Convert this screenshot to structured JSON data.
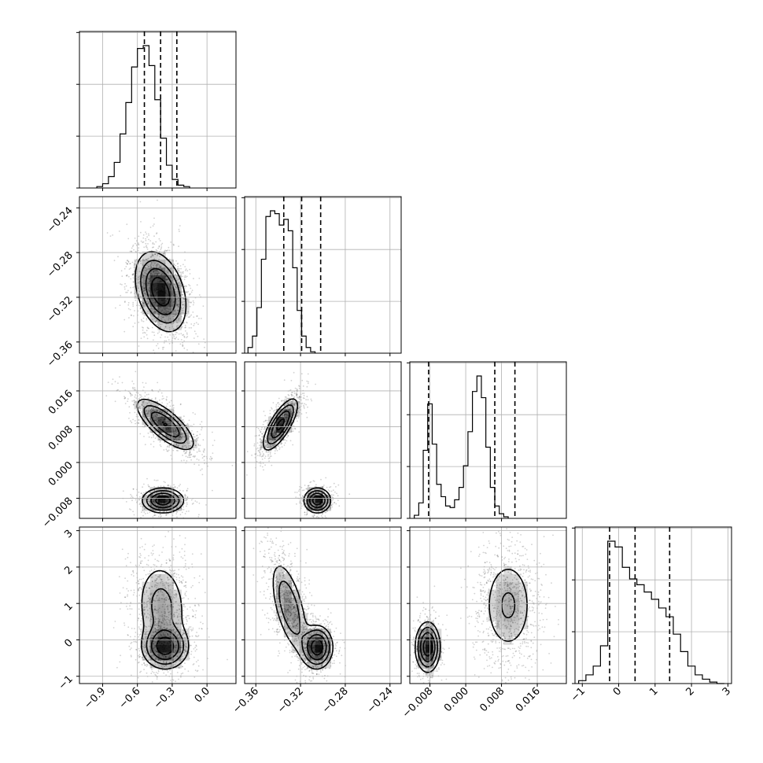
{
  "chart_data": {
    "type": "corner",
    "title": "",
    "parameters": [
      {
        "name": "",
        "range": [
          -1.1,
          0.25
        ],
        "ticks": [
          "-0.9",
          "-0.6",
          "-0.3",
          "0.0"
        ],
        "tick_values": [
          -0.9,
          -0.6,
          -0.3,
          0.0
        ],
        "quantiles": [
          -0.54,
          -0.4,
          -0.26
        ]
      },
      {
        "name": "",
        "range": [
          -0.37,
          -0.23
        ],
        "ticks": [
          "-0.36",
          "-0.32",
          "-0.28",
          "-0.24"
        ],
        "tick_values": [
          -0.36,
          -0.32,
          -0.28,
          -0.24
        ],
        "quantiles": [
          -0.335,
          -0.319,
          -0.302
        ]
      },
      {
        "name": "",
        "range": [
          -0.0125,
          0.0225
        ],
        "ticks": [
          "-0.008",
          "0.000",
          "0.008",
          "0.016"
        ],
        "tick_values": [
          -0.008,
          0.0,
          0.008,
          0.016
        ],
        "quantiles": [
          -0.0083,
          0.0065,
          0.011
        ]
      },
      {
        "name": "",
        "range": [
          -1.2,
          3.1
        ],
        "ticks": [
          "-1",
          "0",
          "1",
          "2",
          "3"
        ],
        "tick_values": [
          -1,
          0,
          1,
          2,
          3
        ],
        "quantiles": [
          -0.25,
          0.45,
          1.4
        ]
      }
    ],
    "y_tick_labels": {
      "p1": [
        "-0.24",
        "-0.28",
        "-0.32",
        "-0.36"
      ],
      "p2": [
        "0.016",
        "0.008",
        "0.000",
        "-0.008"
      ],
      "p3": [
        "3",
        "2",
        "1",
        "0",
        "-1"
      ]
    },
    "histograms": [
      {
        "param": 0,
        "edges_start": -0.95,
        "bin_width": 0.05,
        "counts": [
          1,
          3,
          8,
          18,
          38,
          60,
          85,
          98,
          100,
          86,
          62,
          35,
          16,
          6,
          2,
          1
        ]
      },
      {
        "param": 1,
        "edges_start": -0.367,
        "bin_width": 0.004,
        "counts": [
          4,
          12,
          32,
          66,
          96,
          100,
          98,
          90,
          94,
          86,
          60,
          30,
          12,
          4,
          1
        ]
      },
      {
        "param": 2,
        "edges_start": -0.0115,
        "bin_width": 0.001,
        "counts": [
          2,
          10,
          44,
          74,
          48,
          22,
          14,
          8,
          7,
          12,
          20,
          34,
          56,
          82,
          92,
          78,
          46,
          20,
          8,
          3,
          1
        ]
      },
      {
        "param": 3,
        "edges_start": -1.1,
        "bin_width": 0.2,
        "counts": [
          2,
          6,
          12,
          26,
          98,
          94,
          80,
          72,
          68,
          63,
          58,
          52,
          46,
          34,
          22,
          12,
          6,
          3,
          1,
          0
        ]
      }
    ],
    "clusters_2d": [
      {
        "x": 0,
        "y": 1,
        "blobs": [
          {
            "mx": -0.4,
            "my": -0.315,
            "sx": 0.11,
            "sy": 0.018,
            "rho": -0.35,
            "w": 1.0
          }
        ]
      },
      {
        "x": 0,
        "y": 2,
        "blobs": [
          {
            "mx": -0.36,
            "my": 0.0085,
            "sx": 0.13,
            "sy": 0.003,
            "rho": -0.75,
            "w": 0.62
          },
          {
            "mx": -0.38,
            "my": -0.0085,
            "sx": 0.09,
            "sy": 0.0014,
            "rho": 0.0,
            "w": 0.38
          }
        ]
      },
      {
        "x": 1,
        "y": 2,
        "blobs": [
          {
            "mx": -0.338,
            "my": 0.0085,
            "sx": 0.008,
            "sy": 0.003,
            "rho": 0.75,
            "w": 0.62
          },
          {
            "mx": -0.305,
            "my": -0.0085,
            "sx": 0.006,
            "sy": 0.0014,
            "rho": 0.0,
            "w": 0.38
          }
        ]
      },
      {
        "x": 0,
        "y": 3,
        "blobs": [
          {
            "mx": -0.39,
            "my": 0.9,
            "sx": 0.12,
            "sy": 0.7,
            "rho": -0.1,
            "w": 0.55
          },
          {
            "mx": -0.36,
            "my": -0.2,
            "sx": 0.1,
            "sy": 0.3,
            "rho": 0.0,
            "w": 0.45
          }
        ]
      },
      {
        "x": 1,
        "y": 3,
        "blobs": [
          {
            "mx": -0.33,
            "my": 0.9,
            "sx": 0.009,
            "sy": 0.7,
            "rho": -0.6,
            "w": 0.55
          },
          {
            "mx": -0.305,
            "my": -0.2,
            "sx": 0.007,
            "sy": 0.3,
            "rho": 0.0,
            "w": 0.45
          }
        ]
      },
      {
        "x": 2,
        "y": 3,
        "blobs": [
          {
            "mx": 0.0095,
            "my": 0.95,
            "sx": 0.0032,
            "sy": 0.75,
            "rho": 0.0,
            "w": 0.62
          },
          {
            "mx": -0.0085,
            "my": -0.2,
            "sx": 0.0014,
            "sy": 0.35,
            "rho": 0.0,
            "w": 0.38
          }
        ]
      }
    ],
    "grid": true,
    "legend": "none",
    "colors": {
      "ink": "#000000",
      "grid": "#b0b0b0",
      "scatter": "#000000"
    }
  }
}
